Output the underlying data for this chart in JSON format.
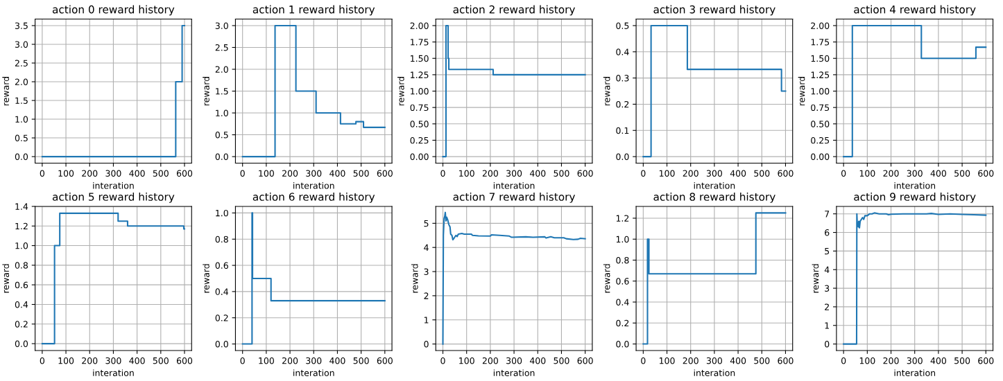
{
  "chart_data": [
    {
      "type": "step",
      "title": "action 0 reward history",
      "xlabel": "interation",
      "ylabel": "reward",
      "x": [
        0,
        563,
        590,
        600
      ],
      "values": [
        0,
        2,
        3.5,
        3.5
      ],
      "color": "#1f77b4",
      "xlim": [
        -30,
        630
      ],
      "xticks": [
        0,
        100,
        200,
        300,
        400,
        500,
        600
      ],
      "ylim": [
        -0.175,
        3.675
      ],
      "yticks": [
        {
          "value": 0,
          "label": "0.0"
        },
        {
          "value": 0.5,
          "label": "0.5"
        },
        {
          "value": 1,
          "label": "1.0"
        },
        {
          "value": 1.5,
          "label": "1.5"
        },
        {
          "value": 2,
          "label": "2.0"
        },
        {
          "value": 2.5,
          "label": "2.5"
        },
        {
          "value": 3,
          "label": "3.0"
        },
        {
          "value": 3.5,
          "label": "3.5"
        }
      ],
      "grid": true
    },
    {
      "type": "step",
      "title": "action 1 reward history",
      "xlabel": "interation",
      "ylabel": "reward",
      "x": [
        0,
        137,
        225,
        310,
        413,
        478,
        510,
        600
      ],
      "values": [
        0,
        3,
        1.5,
        1,
        0.75,
        0.8,
        0.67,
        0.67
      ],
      "color": "#1f77b4",
      "xlim": [
        -30,
        630
      ],
      "xticks": [
        0,
        100,
        200,
        300,
        400,
        500,
        600
      ],
      "ylim": [
        -0.15,
        3.15
      ],
      "yticks": [
        {
          "value": 0,
          "label": "0.0"
        },
        {
          "value": 0.5,
          "label": "0.5"
        },
        {
          "value": 1,
          "label": "1.0"
        },
        {
          "value": 1.5,
          "label": "1.5"
        },
        {
          "value": 2,
          "label": "2.0"
        },
        {
          "value": 2.5,
          "label": "2.5"
        },
        {
          "value": 3,
          "label": "3.0"
        }
      ],
      "grid": true
    },
    {
      "type": "step",
      "title": "action 2 reward history",
      "xlabel": "interation",
      "ylabel": "reward",
      "x": [
        0,
        13,
        22,
        25,
        212,
        600
      ],
      "values": [
        0,
        2,
        1.5,
        1.33,
        1.25,
        1.25
      ],
      "color": "#1f77b4",
      "xlim": [
        -30,
        630
      ],
      "xticks": [
        0,
        100,
        200,
        300,
        400,
        500,
        600
      ],
      "ylim": [
        -0.1,
        2.1
      ],
      "yticks": [
        {
          "value": 0,
          "label": "0.00"
        },
        {
          "value": 0.25,
          "label": "0.25"
        },
        {
          "value": 0.5,
          "label": "0.50"
        },
        {
          "value": 0.75,
          "label": "0.75"
        },
        {
          "value": 1,
          "label": "1.00"
        },
        {
          "value": 1.25,
          "label": "1.25"
        },
        {
          "value": 1.5,
          "label": "1.50"
        },
        {
          "value": 1.75,
          "label": "1.75"
        },
        {
          "value": 2,
          "label": "2.00"
        }
      ],
      "grid": true
    },
    {
      "type": "step",
      "title": "action 3 reward history",
      "xlabel": "interation",
      "ylabel": "reward",
      "x": [
        0,
        33,
        186,
        583,
        600
      ],
      "values": [
        0,
        0.5,
        0.333,
        0.25,
        0.25
      ],
      "color": "#1f77b4",
      "xlim": [
        -30,
        630
      ],
      "xticks": [
        0,
        100,
        200,
        300,
        400,
        500,
        600
      ],
      "ylim": [
        -0.025,
        0.525
      ],
      "yticks": [
        {
          "value": 0,
          "label": "0.0"
        },
        {
          "value": 0.1,
          "label": "0.1"
        },
        {
          "value": 0.2,
          "label": "0.2"
        },
        {
          "value": 0.3,
          "label": "0.3"
        },
        {
          "value": 0.4,
          "label": "0.4"
        },
        {
          "value": 0.5,
          "label": "0.5"
        }
      ],
      "grid": true
    },
    {
      "type": "step",
      "title": "action 4 reward history",
      "xlabel": "interation",
      "ylabel": "reward",
      "x": [
        0,
        37,
        328,
        558,
        600
      ],
      "values": [
        0,
        2,
        1.5,
        1.67,
        1.67
      ],
      "color": "#1f77b4",
      "xlim": [
        -30,
        630
      ],
      "xticks": [
        0,
        100,
        200,
        300,
        400,
        500,
        600
      ],
      "ylim": [
        -0.1,
        2.1
      ],
      "yticks": [
        {
          "value": 0,
          "label": "0.00"
        },
        {
          "value": 0.25,
          "label": "0.25"
        },
        {
          "value": 0.5,
          "label": "0.50"
        },
        {
          "value": 0.75,
          "label": "0.75"
        },
        {
          "value": 1,
          "label": "1.00"
        },
        {
          "value": 1.25,
          "label": "1.25"
        },
        {
          "value": 1.5,
          "label": "1.50"
        },
        {
          "value": 1.75,
          "label": "1.75"
        },
        {
          "value": 2,
          "label": "2.00"
        }
      ],
      "grid": true
    },
    {
      "type": "step",
      "title": "action 5 reward history",
      "xlabel": "interation",
      "ylabel": "reward",
      "x": [
        0,
        52,
        74,
        320,
        360,
        597,
        600
      ],
      "values": [
        0,
        1,
        1.33,
        1.25,
        1.2,
        1.17,
        1.17
      ],
      "color": "#1f77b4",
      "xlim": [
        -30,
        630
      ],
      "xticks": [
        0,
        100,
        200,
        300,
        400,
        500,
        600
      ],
      "ylim": [
        -0.07,
        1.4
      ],
      "yticks": [
        {
          "value": 0,
          "label": "0.0"
        },
        {
          "value": 0.2,
          "label": "0.2"
        },
        {
          "value": 0.4,
          "label": "0.4"
        },
        {
          "value": 0.6,
          "label": "0.6"
        },
        {
          "value": 0.8,
          "label": "0.8"
        },
        {
          "value": 1,
          "label": "1.0"
        },
        {
          "value": 1.2,
          "label": "1.2"
        },
        {
          "value": 1.4,
          "label": "1.4"
        }
      ],
      "grid": true
    },
    {
      "type": "step",
      "title": "action 6 reward history",
      "xlabel": "interation",
      "ylabel": "reward",
      "x": [
        0,
        40,
        42,
        120,
        600
      ],
      "values": [
        0,
        1,
        0.5,
        0.33,
        0.33
      ],
      "color": "#1f77b4",
      "xlim": [
        -30,
        630
      ],
      "xticks": [
        0,
        100,
        200,
        300,
        400,
        500,
        600
      ],
      "ylim": [
        -0.05,
        1.05
      ],
      "yticks": [
        {
          "value": 0,
          "label": "0.0"
        },
        {
          "value": 0.2,
          "label": "0.2"
        },
        {
          "value": 0.4,
          "label": "0.4"
        },
        {
          "value": 0.6,
          "label": "0.6"
        },
        {
          "value": 0.8,
          "label": "0.8"
        },
        {
          "value": 1,
          "label": "1.0"
        }
      ],
      "grid": true
    },
    {
      "type": "line",
      "title": "action 7 reward history",
      "xlabel": "interation",
      "ylabel": "reward",
      "x": [
        0,
        2,
        5,
        8,
        10,
        13,
        16,
        20,
        25,
        30,
        33,
        38,
        42,
        48,
        55,
        60,
        65,
        80,
        90,
        120,
        125,
        150,
        200,
        205,
        240,
        280,
        290,
        350,
        380,
        430,
        435,
        455,
        470,
        510,
        520,
        550,
        570,
        580,
        600
      ],
      "values": [
        0,
        4.5,
        5.2,
        5.3,
        5.45,
        5.1,
        5.25,
        5.15,
        4.95,
        4.85,
        4.55,
        4.5,
        4.32,
        4.4,
        4.5,
        4.45,
        4.55,
        4.58,
        4.55,
        4.55,
        4.5,
        4.48,
        4.47,
        4.52,
        4.5,
        4.47,
        4.42,
        4.44,
        4.42,
        4.44,
        4.39,
        4.44,
        4.4,
        4.4,
        4.36,
        4.33,
        4.34,
        4.38,
        4.36
      ],
      "color": "#1f77b4",
      "xlim": [
        -30,
        630
      ],
      "xticks": [
        0,
        100,
        200,
        300,
        400,
        500,
        600
      ],
      "ylim": [
        -0.27,
        5.7
      ],
      "yticks": [
        0,
        1,
        2,
        3,
        4,
        5
      ],
      "grid": true
    },
    {
      "type": "step",
      "title": "action 8 reward history",
      "xlabel": "interation",
      "ylabel": "reward",
      "x": [
        0,
        18,
        24,
        475,
        600
      ],
      "values": [
        0,
        1,
        0.67,
        1.25,
        1.25
      ],
      "color": "#1f77b4",
      "xlim": [
        -30,
        630
      ],
      "xticks": [
        0,
        100,
        200,
        300,
        400,
        500,
        600
      ],
      "ylim": [
        -0.0625,
        1.3125
      ],
      "yticks": [
        {
          "value": 0,
          "label": "0.0"
        },
        {
          "value": 0.2,
          "label": "0.2"
        },
        {
          "value": 0.4,
          "label": "0.4"
        },
        {
          "value": 0.6,
          "label": "0.6"
        },
        {
          "value": 0.8,
          "label": "0.8"
        },
        {
          "value": 1,
          "label": "1.0"
        },
        {
          "value": 1.2,
          "label": "1.2"
        }
      ],
      "grid": true
    },
    {
      "type": "line",
      "title": "action 9 reward history",
      "xlabel": "interation",
      "ylabel": "reward",
      "x": [
        0,
        55,
        56,
        58,
        60,
        62,
        64,
        67,
        70,
        75,
        80,
        85,
        90,
        100,
        110,
        120,
        130,
        150,
        180,
        190,
        200,
        250,
        300,
        350,
        370,
        400,
        450,
        500,
        550,
        600
      ],
      "values": [
        0,
        0,
        7.0,
        6.4,
        6.5,
        6.3,
        6.6,
        6.25,
        6.6,
        6.7,
        6.8,
        6.7,
        6.9,
        6.9,
        7.0,
        7.0,
        7.05,
        7.0,
        7.0,
        6.95,
        6.98,
        7.0,
        7.0,
        7.0,
        7.02,
        6.97,
        7.0,
        6.97,
        6.95,
        6.93
      ],
      "color": "#1f77b4",
      "xlim": [
        -30,
        630
      ],
      "xticks": [
        0,
        100,
        200,
        300,
        400,
        500,
        600
      ],
      "ylim": [
        -0.35,
        7.4
      ],
      "yticks": [
        0,
        1,
        2,
        3,
        4,
        5,
        6,
        7
      ],
      "grid": true
    }
  ]
}
